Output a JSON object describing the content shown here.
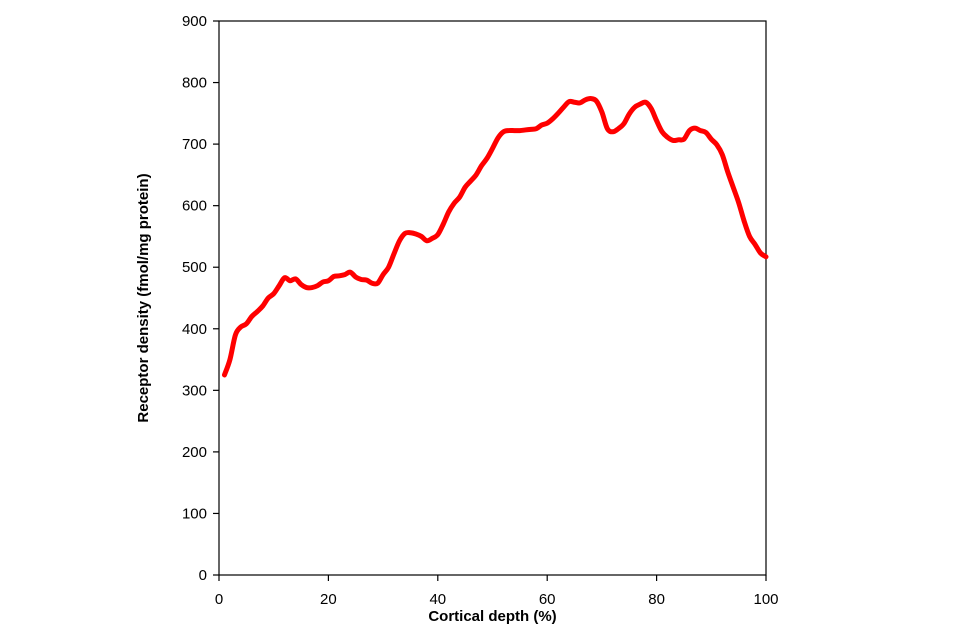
{
  "chart_data": {
    "type": "line",
    "xlabel": "Cortical depth (%)",
    "ylabel": "Receptor density (fmol/mg protein)",
    "xlim": [
      0,
      100
    ],
    "ylim": [
      0,
      900
    ],
    "x_ticks": [
      0,
      20,
      40,
      60,
      80,
      100
    ],
    "y_ticks": [
      0,
      100,
      200,
      300,
      400,
      500,
      600,
      700,
      800,
      900
    ],
    "grid": false,
    "legend": "none",
    "series": [
      {
        "color": "#ff0000",
        "x": [
          1,
          2,
          3,
          4,
          5,
          6,
          7,
          8,
          9,
          10,
          11,
          12,
          13,
          14,
          15,
          16,
          17,
          18,
          19,
          20,
          21,
          22,
          23,
          24,
          25,
          26,
          27,
          28,
          29,
          30,
          31,
          32,
          33,
          34,
          35,
          36,
          37,
          38,
          39,
          40,
          41,
          42,
          43,
          44,
          45,
          46,
          47,
          48,
          49,
          50,
          51,
          52,
          53,
          54,
          55,
          56,
          57,
          58,
          59,
          60,
          61,
          62,
          63,
          64,
          65,
          66,
          67,
          68,
          69,
          70,
          71,
          72,
          73,
          74,
          75,
          76,
          77,
          78,
          79,
          80,
          81,
          82,
          83,
          84,
          85,
          86,
          87,
          88,
          89,
          90,
          91,
          92,
          93,
          94,
          95,
          96,
          97,
          98,
          99,
          100
        ],
        "y": [
          325,
          350,
          390,
          403,
          408,
          420,
          428,
          437,
          450,
          457,
          470,
          483,
          478,
          481,
          472,
          467,
          467,
          470,
          476,
          478,
          485,
          486,
          488,
          492,
          484,
          480,
          479,
          474,
          474,
          488,
          500,
          522,
          543,
          555,
          556,
          554,
          550,
          543,
          547,
          553,
          570,
          590,
          604,
          614,
          630,
          640,
          650,
          665,
          677,
          693,
          710,
          720,
          722,
          722,
          722,
          723,
          724,
          725,
          731,
          734,
          741,
          750,
          760,
          769,
          768,
          767,
          772,
          774,
          770,
          752,
          725,
          720,
          725,
          733,
          749,
          760,
          765,
          768,
          758,
          738,
          720,
          711,
          706,
          707,
          708,
          722,
          726,
          722,
          719,
          708,
          699,
          683,
          655,
          630,
          605,
          575,
          550,
          537,
          523,
          517
        ]
      }
    ]
  }
}
